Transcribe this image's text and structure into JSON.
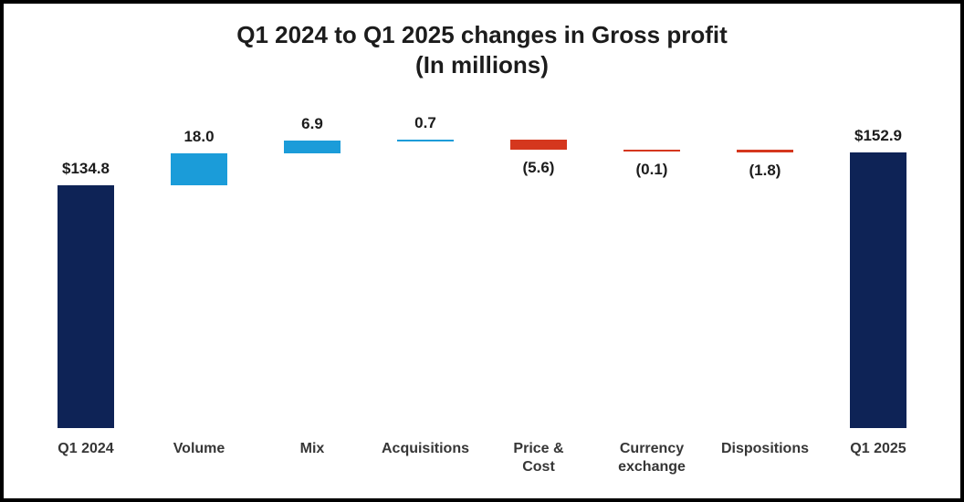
{
  "chart_data": {
    "type": "bar",
    "subtype": "waterfall",
    "title_line1": "Q1 2024 to Q1 2025 changes in Gross profit",
    "title_line2": "(In millions)",
    "ymax": 180,
    "grid": false,
    "legend": "none",
    "colors": {
      "total": "#0e2356",
      "increase": "#1b9cd9",
      "decrease": "#d5371e"
    },
    "bars": [
      {
        "category": "Q1 2024",
        "category_lines": [
          "Q1 2024"
        ],
        "label": "$134.8",
        "value": 134.8,
        "kind": "total",
        "label_pos": "above"
      },
      {
        "category": "Volume",
        "category_lines": [
          "Volume"
        ],
        "label": "18.0",
        "value": 18.0,
        "kind": "increase",
        "label_pos": "above"
      },
      {
        "category": "Mix",
        "category_lines": [
          "Mix"
        ],
        "label": "6.9",
        "value": 6.9,
        "kind": "increase",
        "label_pos": "above"
      },
      {
        "category": "Acquisitions",
        "category_lines": [
          "Acquisitions"
        ],
        "label": "0.7",
        "value": 0.7,
        "kind": "increase",
        "label_pos": "above"
      },
      {
        "category": "Price & Cost",
        "category_lines": [
          "Price &",
          "Cost"
        ],
        "label": "(5.6)",
        "value": -5.6,
        "kind": "decrease",
        "label_pos": "below"
      },
      {
        "category": "Currency exchange",
        "category_lines": [
          "Currency",
          "exchange"
        ],
        "label": "(0.1)",
        "value": -0.1,
        "kind": "decrease",
        "label_pos": "below"
      },
      {
        "category": "Dispositions",
        "category_lines": [
          "Dispositions"
        ],
        "label": "(1.8)",
        "value": -1.8,
        "kind": "decrease",
        "label_pos": "below"
      },
      {
        "category": "Q1 2025",
        "category_lines": [
          "Q1 2025"
        ],
        "label": "$152.9",
        "value": 152.9,
        "kind": "total",
        "label_pos": "above"
      }
    ]
  }
}
